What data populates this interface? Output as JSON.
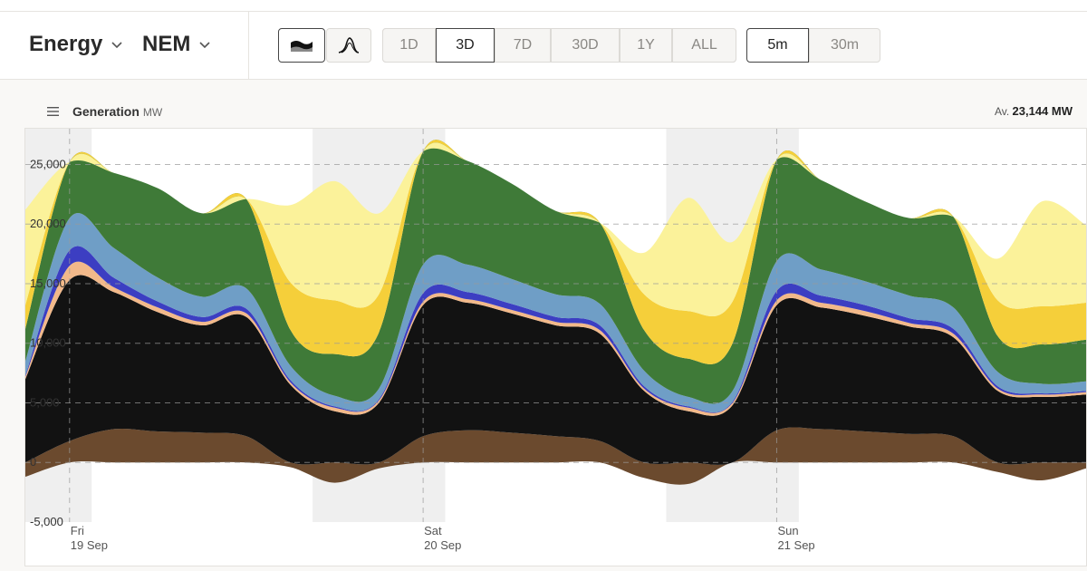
{
  "header": {
    "dataset_label": "Energy",
    "region_label": "NEM",
    "chart_styles": [
      {
        "name": "stacked-area",
        "icon": "stacked-area-icon",
        "active": true
      },
      {
        "name": "line",
        "icon": "line-chart-icon",
        "active": false
      }
    ],
    "ranges": [
      {
        "label": "1D",
        "active": false
      },
      {
        "label": "3D",
        "active": true
      },
      {
        "label": "7D",
        "active": false
      },
      {
        "label": "30D",
        "active": false
      },
      {
        "label": "1Y",
        "active": false
      },
      {
        "label": "ALL",
        "active": false
      }
    ],
    "intervals": [
      {
        "label": "5m",
        "active": true
      },
      {
        "label": "30m",
        "active": false
      }
    ]
  },
  "panel": {
    "title": "Generation",
    "unit": "MW",
    "average_prefix": "Av.",
    "average_value": "23,144 MW"
  },
  "chart_data": {
    "type": "area",
    "stacked": true,
    "title": "Generation",
    "ylabel": "MW",
    "ylim": [
      -5000,
      28000
    ],
    "yticks": [
      -5000,
      0,
      5000,
      10000,
      15000,
      20000,
      25000
    ],
    "ytick_labels": [
      "-5,000",
      "0",
      "5,000",
      "10,000",
      "15,000",
      "20,000",
      "25,000"
    ],
    "grid": true,
    "x_hours": [
      0,
      3,
      6,
      9,
      12,
      15,
      18,
      21,
      24,
      27,
      30,
      33,
      36,
      39,
      42,
      45,
      48,
      51,
      54,
      57,
      60,
      63,
      66,
      69,
      72
    ],
    "x_ticks": [
      {
        "hour": 3,
        "day": "Fri",
        "date": "19 Sep"
      },
      {
        "hour": 27,
        "day": "Sat",
        "date": "20 Sep"
      },
      {
        "hour": 51,
        "day": "Sun",
        "date": "21 Sep"
      }
    ],
    "night_bands": [
      [
        -4.5,
        4.5
      ],
      [
        19.5,
        28.5
      ],
      [
        43.5,
        52.5
      ]
    ],
    "series": [
      {
        "name": "",
        "color": "#6b4a2e",
        "values": [
          -1200,
          1800,
          2800,
          2600,
          2500,
          2200,
          -400,
          -1700,
          -500,
          2200,
          2700,
          2500,
          2200,
          1800,
          -1300,
          -1800,
          0,
          2700,
          2800,
          2600,
          2400,
          2200,
          -800,
          -1500,
          -500
        ]
      },
      {
        "name": "",
        "color": "#121212",
        "values": [
          7000,
          13500,
          11500,
          10000,
          9000,
          10000,
          6500,
          4300,
          5000,
          11000,
          10700,
          10000,
          9300,
          9000,
          6000,
          4300,
          4800,
          10500,
          10200,
          9700,
          9000,
          8300,
          6000,
          5500,
          5700
        ]
      },
      {
        "name": "",
        "color": "#f2b98a",
        "values": [
          200,
          1200,
          400,
          400,
          300,
          300,
          200,
          300,
          200,
          300,
          300,
          300,
          300,
          300,
          200,
          300,
          200,
          400,
          400,
          400,
          300,
          300,
          200,
          200,
          200
        ]
      },
      {
        "name": "",
        "color": "#3c3ec2",
        "values": [
          100,
          1300,
          800,
          500,
          400,
          400,
          200,
          100,
          100,
          700,
          600,
          500,
          400,
          400,
          200,
          100,
          100,
          800,
          600,
          500,
          400,
          400,
          200,
          100,
          100
        ]
      },
      {
        "name": "",
        "color": "#6f9ec6",
        "values": [
          1200,
          2700,
          2500,
          2000,
          1700,
          1700,
          1200,
          900,
          900,
          2400,
          2300,
          2100,
          1900,
          1800,
          1300,
          800,
          900,
          2500,
          2200,
          2000,
          1900,
          1800,
          1200,
          800,
          800
        ]
      },
      {
        "name": "",
        "color": "#3f7a38",
        "values": [
          2700,
          4700,
          6300,
          7500,
          7000,
          7500,
          3000,
          3500,
          4700,
          9500,
          8700,
          8000,
          7000,
          6800,
          3400,
          3200,
          4000,
          8500,
          7500,
          6700,
          6500,
          7600,
          3000,
          3300,
          3500
        ]
      },
      {
        "name": "",
        "color": "#f5cf3a",
        "values": [
          2000,
          0,
          0,
          0,
          0,
          0,
          4000,
          4500,
          3200,
          0,
          0,
          0,
          0,
          0,
          3000,
          4000,
          3500,
          0,
          0,
          0,
          0,
          0,
          3000,
          3200,
          3100
        ]
      },
      {
        "name": "",
        "color": "#fbf29a",
        "values": [
          8000,
          0,
          0,
          0,
          0,
          0,
          6500,
          10000,
          6800,
          0,
          0,
          0,
          0,
          0,
          3500,
          9500,
          5000,
          0,
          0,
          0,
          0,
          0,
          3500,
          8800,
          6500
        ]
      }
    ]
  }
}
